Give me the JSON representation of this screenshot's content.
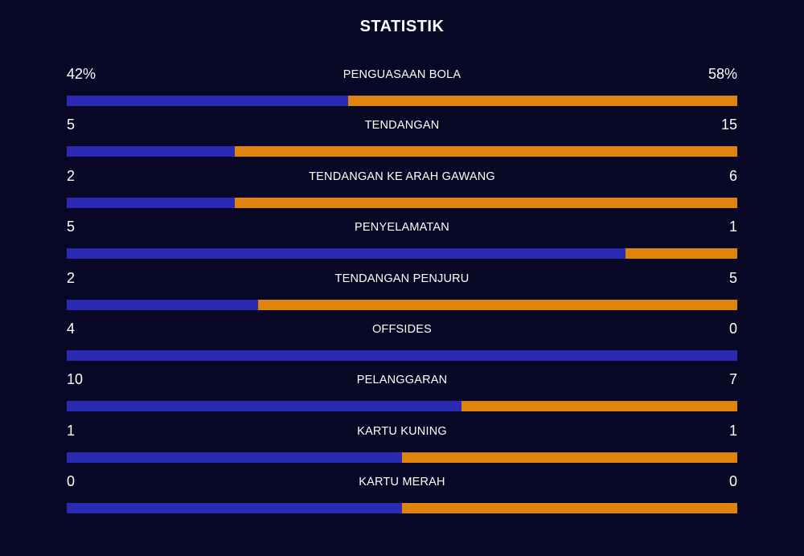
{
  "title": "STATISTIK",
  "colors": {
    "home": "#2a2ab4",
    "away": "#df840f",
    "background": "#080725"
  },
  "stats": [
    {
      "label": "PENGUASAAN BOLA",
      "left": "42%",
      "right": "58%",
      "home_share": 0.42
    },
    {
      "label": "TENDANGAN",
      "left": "5",
      "right": "15",
      "home_share": 0.25
    },
    {
      "label": "TENDANGAN KE ARAH GAWANG",
      "left": "2",
      "right": "6",
      "home_share": 0.25
    },
    {
      "label": "PENYELAMATAN",
      "left": "5",
      "right": "1",
      "home_share": 0.8333
    },
    {
      "label": "TENDANGAN PENJURU",
      "left": "2",
      "right": "5",
      "home_share": 0.2857
    },
    {
      "label": "OFFSIDES",
      "left": "4",
      "right": "0",
      "home_share": 1.0
    },
    {
      "label": "PELANGGARAN",
      "left": "10",
      "right": "7",
      "home_share": 0.5882
    },
    {
      "label": "KARTU KUNING",
      "left": "1",
      "right": "1",
      "home_share": 0.5
    },
    {
      "label": "KARTU MERAH",
      "left": "0",
      "right": "0",
      "home_share": 0.5
    }
  ]
}
